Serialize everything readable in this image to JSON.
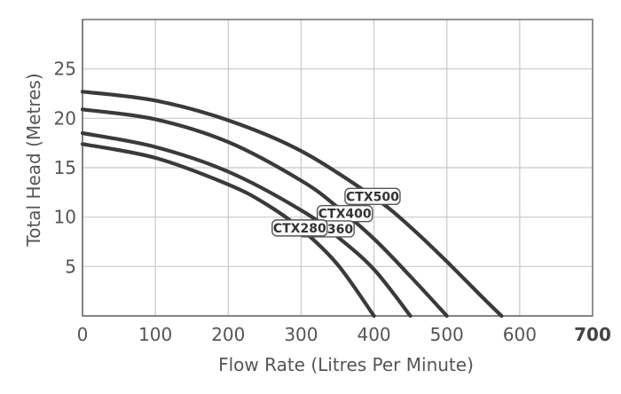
{
  "chart_data": {
    "type": "line",
    "xlabel": "Flow Rate (Litres Per Minute)",
    "ylabel": "Total Head (Metres)",
    "xlim": [
      0,
      700
    ],
    "ylim": [
      0,
      30
    ],
    "x_ticks": [
      "0",
      "100",
      "200",
      "300",
      "400",
      "500",
      "600",
      "700"
    ],
    "y_ticks": [
      "5",
      "10",
      "15",
      "20",
      "25"
    ],
    "grid": true,
    "series": [
      {
        "name": "CTX500",
        "x": [
          0,
          100,
          200,
          300,
          400,
          450,
          500,
          550,
          575
        ],
        "y": [
          22.7,
          21.8,
          19.8,
          16.7,
          12.0,
          9.0,
          5.5,
          1.8,
          0
        ]
      },
      {
        "name": "CTX400",
        "x": [
          0,
          100,
          200,
          300,
          350,
          400,
          450,
          500
        ],
        "y": [
          20.9,
          19.9,
          17.6,
          13.7,
          11.0,
          7.8,
          4.0,
          0
        ]
      },
      {
        "name": "CTX360",
        "x": [
          0,
          100,
          200,
          300,
          350,
          400,
          450
        ],
        "y": [
          18.5,
          17.1,
          14.6,
          10.7,
          8.0,
          4.7,
          0
        ]
      },
      {
        "name": "CTX280",
        "x": [
          0,
          100,
          200,
          250,
          300,
          350,
          400
        ],
        "y": [
          17.4,
          16.0,
          13.3,
          11.4,
          8.8,
          5.2,
          0
        ]
      }
    ]
  }
}
